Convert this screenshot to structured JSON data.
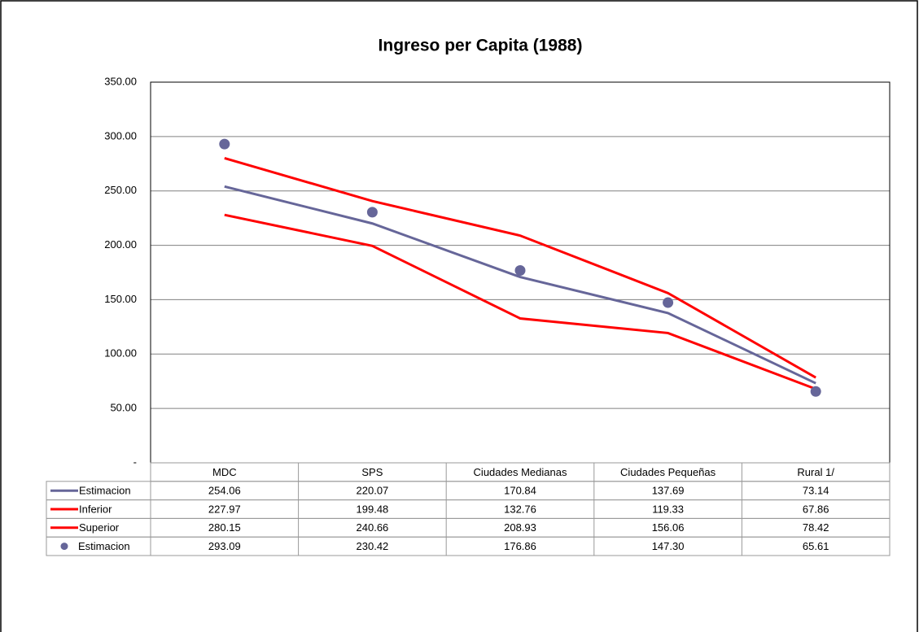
{
  "chart_data": {
    "type": "line",
    "title": "Ingreso per Capita (1988)",
    "categories": [
      "MDC",
      "SPS",
      "Ciudades Medianas",
      "Ciudades Pequeñas",
      "Rural 1/"
    ],
    "series": [
      {
        "name": "Estimacion",
        "style": "line",
        "color": "#666699",
        "values": [
          254.06,
          220.07,
          170.84,
          137.69,
          73.14
        ],
        "value_labels": [
          "254.06",
          "220.07",
          "170.84",
          "137.69",
          "73.14"
        ]
      },
      {
        "name": "Inferior",
        "style": "line",
        "color": "#ff0000",
        "values": [
          227.97,
          199.48,
          132.76,
          119.33,
          67.86
        ],
        "value_labels": [
          "227.97",
          "199.48",
          "132.76",
          "119.33",
          "67.86"
        ]
      },
      {
        "name": "Superior",
        "style": "line",
        "color": "#ff0000",
        "values": [
          280.15,
          240.66,
          208.93,
          156.06,
          78.42
        ],
        "value_labels": [
          "280.15",
          "240.66",
          "208.93",
          "156.06",
          "78.42"
        ]
      },
      {
        "name": "Estimacion",
        "style": "marker",
        "color": "#666699",
        "values": [
          293.09,
          230.42,
          176.86,
          147.3,
          65.61
        ],
        "value_labels": [
          "293.09",
          "230.42",
          "176.86",
          "147.30",
          "65.61"
        ]
      }
    ],
    "ylim": [
      0,
      350
    ],
    "yticks": [
      {
        "value": 0,
        "label": "-"
      },
      {
        "value": 50,
        "label": "50.00"
      },
      {
        "value": 100,
        "label": "100.00"
      },
      {
        "value": 150,
        "label": "150.00"
      },
      {
        "value": 200,
        "label": "200.00"
      },
      {
        "value": 250,
        "label": "250.00"
      },
      {
        "value": 300,
        "label": "300.00"
      },
      {
        "value": 350,
        "label": "350.00"
      }
    ],
    "grid": true
  }
}
